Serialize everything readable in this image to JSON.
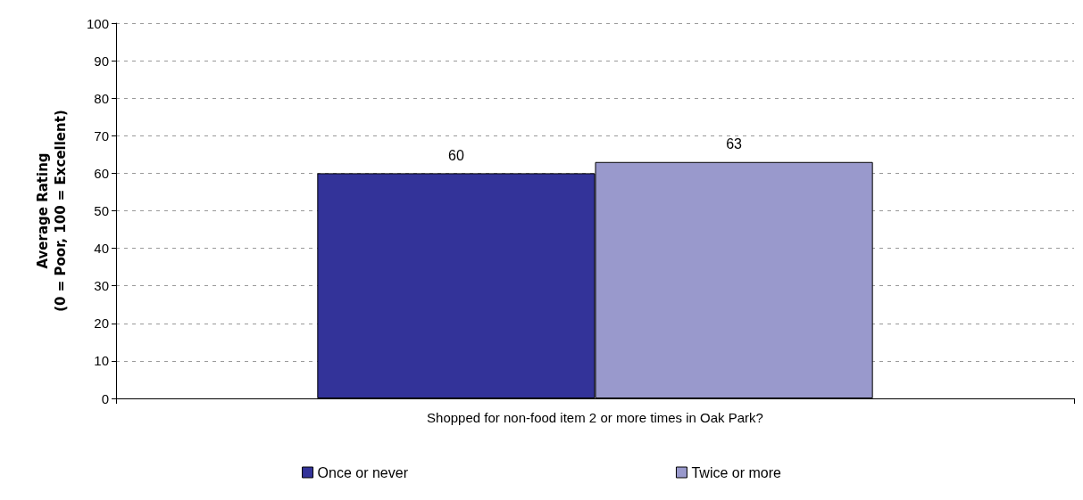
{
  "chart_data": {
    "type": "bar",
    "categories": [
      "Shopped for non-food item 2 or more times in Oak Park?"
    ],
    "series": [
      {
        "name": "Once or never",
        "color": "#333399",
        "values": [
          60
        ]
      },
      {
        "name": "Twice or more",
        "color": "#9999cc",
        "values": [
          63
        ]
      }
    ],
    "ylabel": "Average Rating\n(0 = Poor, 100 = Excellent)",
    "ylim": [
      0,
      100
    ],
    "yticks": [
      0,
      10,
      20,
      30,
      40,
      50,
      60,
      70,
      80,
      90,
      100
    ],
    "grid": "y",
    "legend": "bottom",
    "data_labels": true
  }
}
